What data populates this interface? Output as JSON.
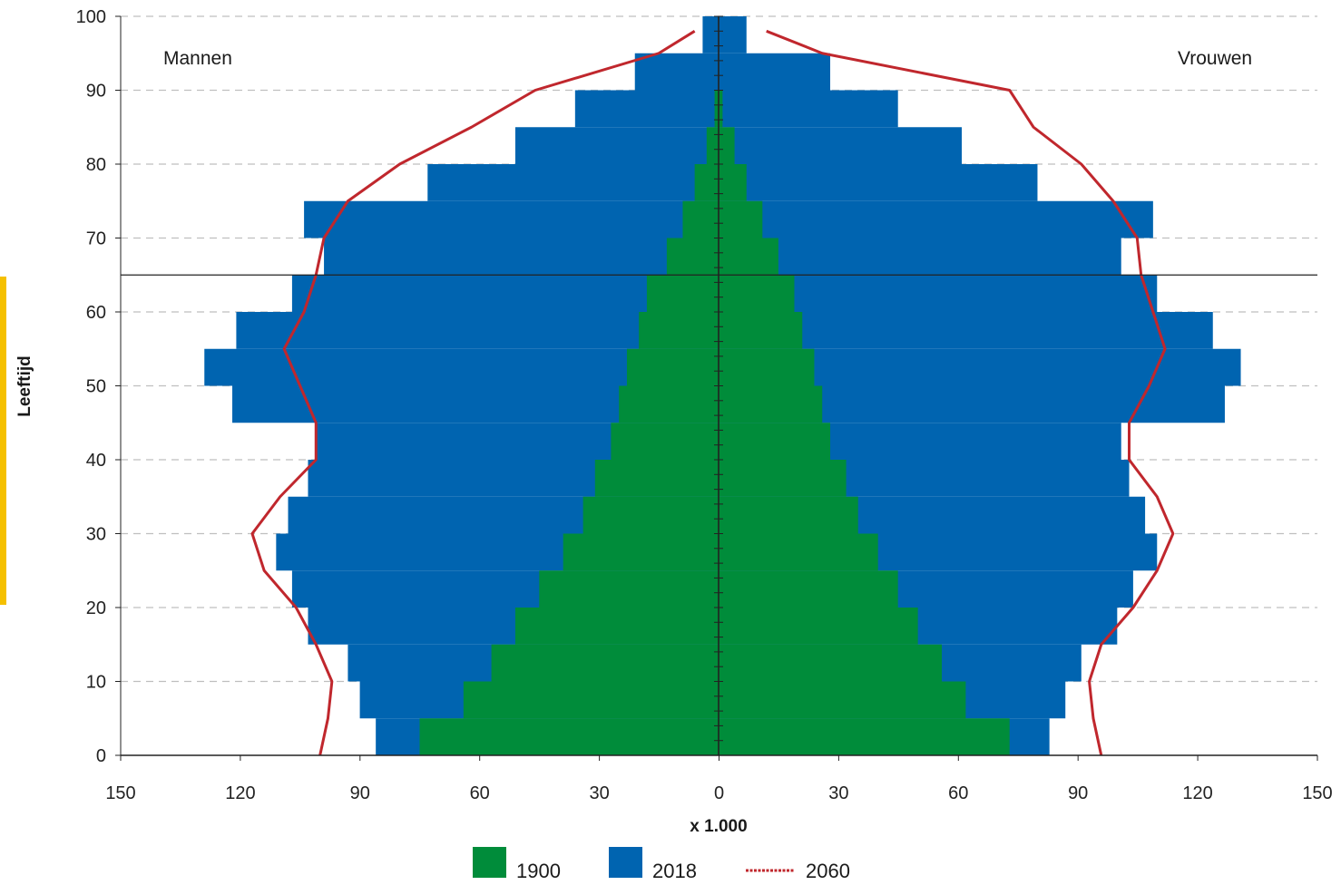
{
  "chart_data": {
    "type": "population-pyramid",
    "title": "",
    "ylabel": "Leeftijd",
    "xlabel": "x 1.000",
    "left_label": "Mannen",
    "right_label": "Vrouwen",
    "x_ticks": [
      "150",
      "120",
      "90",
      "60",
      "30",
      "0",
      "30",
      "60",
      "90",
      "120",
      "150"
    ],
    "y_ticks": [
      "0",
      "10",
      "20",
      "30",
      "40",
      "50",
      "60",
      "70",
      "80",
      "90",
      "100"
    ],
    "xlim": [
      -150,
      150
    ],
    "ylim": [
      0,
      100
    ],
    "reference_age": 65,
    "grid": "horizontal dashed",
    "legend_position": "bottom",
    "colors": {
      "s1900": "#008c3a",
      "s2018": "#0064b0",
      "s2060": "#c0272d",
      "grid": "#bfbfbf",
      "axis": "#222222",
      "accent": "#f5c000"
    },
    "series": [
      {
        "name": "1900",
        "kind": "bar",
        "ages": [
          0,
          5,
          10,
          15,
          20,
          25,
          30,
          35,
          40,
          45,
          50,
          55,
          60,
          65,
          70,
          75,
          80,
          85,
          90
        ],
        "male": [
          75,
          64,
          57,
          51,
          45,
          39,
          34,
          31,
          27,
          25,
          23,
          20,
          18,
          13,
          9,
          6,
          3,
          1,
          0
        ],
        "female": [
          73,
          62,
          56,
          50,
          45,
          40,
          35,
          32,
          28,
          26,
          24,
          21,
          19,
          15,
          11,
          7,
          4,
          1,
          0
        ]
      },
      {
        "name": "2018",
        "kind": "bar",
        "ages": [
          0,
          5,
          10,
          15,
          20,
          25,
          30,
          35,
          40,
          45,
          50,
          55,
          60,
          65,
          70,
          75,
          80,
          85,
          90,
          95
        ],
        "male": [
          86,
          90,
          93,
          103,
          107,
          111,
          108,
          103,
          101,
          122,
          129,
          121,
          107,
          99,
          104,
          73,
          51,
          36,
          21,
          4
        ],
        "female": [
          83,
          87,
          91,
          100,
          104,
          110,
          107,
          103,
          101,
          127,
          131,
          124,
          110,
          101,
          109,
          80,
          61,
          45,
          28,
          7
        ]
      },
      {
        "name": "2060",
        "kind": "line",
        "ages": [
          0,
          5,
          10,
          15,
          20,
          25,
          30,
          35,
          40,
          45,
          50,
          55,
          60,
          65,
          70,
          75,
          80,
          85,
          90,
          95,
          98
        ],
        "male": [
          100,
          98,
          97,
          101,
          106,
          114,
          117,
          110,
          101,
          101,
          105,
          109,
          104,
          101,
          99,
          93,
          80,
          62,
          46,
          15,
          6
        ],
        "female": [
          96,
          94,
          93,
          96,
          104,
          110,
          114,
          110,
          103,
          103,
          108,
          112,
          109,
          106,
          105,
          99,
          91,
          79,
          73,
          26,
          12
        ]
      }
    ]
  }
}
